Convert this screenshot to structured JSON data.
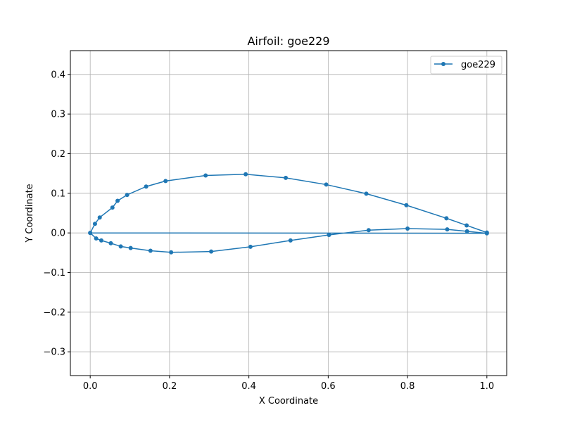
{
  "chart_data": {
    "type": "line",
    "title": "Airfoil: goe229",
    "xlabel": "X Coordinate",
    "ylabel": "Y Coordinate",
    "xlim": [
      -0.05,
      1.05
    ],
    "ylim": [
      -0.36,
      0.46
    ],
    "xticks": [
      0.0,
      0.2,
      0.4,
      0.6,
      0.8,
      1.0
    ],
    "xtick_labels": [
      "0.0",
      "0.2",
      "0.4",
      "0.6",
      "0.8",
      "1.0"
    ],
    "yticks": [
      -0.3,
      -0.2,
      -0.1,
      0.0,
      0.1,
      0.2,
      0.3,
      0.4
    ],
    "ytick_labels": [
      "−0.3",
      "−0.2",
      "−0.1",
      "0.0",
      "0.1",
      "0.2",
      "0.3",
      "0.4"
    ],
    "grid": true,
    "legend_position": "top-right",
    "series": [
      {
        "name": "goe229",
        "color": "#1f77b4",
        "x": [
          1.0,
          0.949,
          0.898,
          0.797,
          0.696,
          0.595,
          0.493,
          0.392,
          0.291,
          0.19,
          0.141,
          0.093,
          0.069,
          0.056,
          0.024,
          0.012,
          0.0,
          0.015,
          0.028,
          0.052,
          0.077,
          0.102,
          0.152,
          0.204,
          0.305,
          0.404,
          0.505,
          0.602,
          0.702,
          0.8,
          0.9,
          0.95,
          1.0,
          0.0
        ],
        "y": [
          0.001,
          0.019,
          0.037,
          0.07,
          0.099,
          0.122,
          0.139,
          0.148,
          0.145,
          0.131,
          0.117,
          0.096,
          0.081,
          0.064,
          0.039,
          0.023,
          0.0,
          -0.014,
          -0.019,
          -0.026,
          -0.034,
          -0.038,
          -0.045,
          -0.049,
          -0.047,
          -0.035,
          -0.019,
          -0.005,
          0.007,
          0.011,
          0.009,
          0.004,
          -0.001,
          0.0
        ]
      }
    ]
  }
}
